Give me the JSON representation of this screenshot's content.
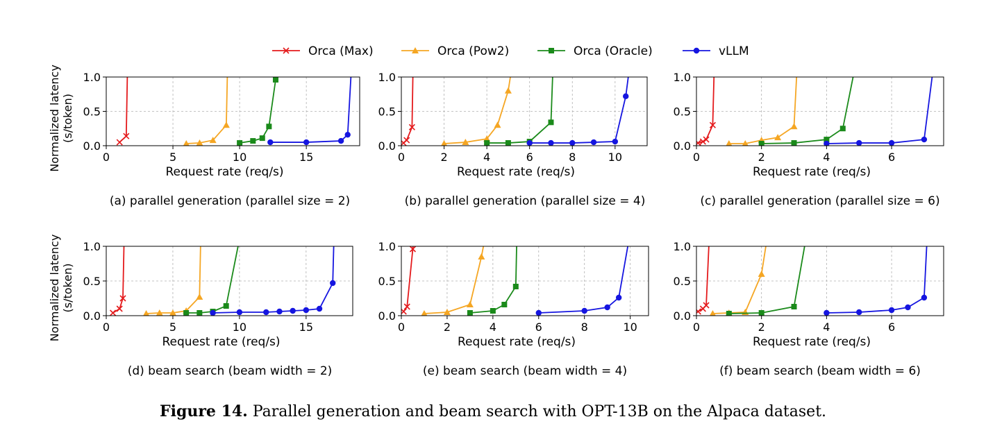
{
  "figure": {
    "label": "Figure 14.",
    "text": "Parallel generation and beam search with OPT-13B on the Alpaca dataset."
  },
  "legend": [
    {
      "name": "Orca (Max)",
      "color": "#e41a1c",
      "marker": "x"
    },
    {
      "name": "Orca (Pow2)",
      "color": "#f5a623",
      "marker": "triangle"
    },
    {
      "name": "Orca (Oracle)",
      "color": "#1a8a1a",
      "marker": "square"
    },
    {
      "name": "vLLM",
      "color": "#1515e0",
      "marker": "circle"
    }
  ],
  "chart_data": [
    {
      "type": "line",
      "caption": "(a) parallel generation (parallel size = 2)",
      "xlabel": "Request rate (req/s)",
      "ylabel": "Normalized latency\n(s/token)",
      "xlim": [
        0,
        19
      ],
      "ylim": [
        0,
        1.0
      ],
      "xticks": [
        0,
        5,
        10,
        15
      ],
      "yticks": [
        0.0,
        0.5,
        1.0
      ],
      "grid": true,
      "series": [
        {
          "name": "Orca (Max)",
          "x": [
            1.0,
            1.5,
            1.6
          ],
          "y": [
            0.05,
            0.14,
            1.2
          ]
        },
        {
          "name": "Orca (Pow2)",
          "x": [
            6,
            7,
            8,
            9,
            9.1
          ],
          "y": [
            0.03,
            0.04,
            0.08,
            0.3,
            1.2
          ]
        },
        {
          "name": "Orca (Oracle)",
          "x": [
            10,
            11,
            11.7,
            12.2,
            12.7,
            12.8
          ],
          "y": [
            0.04,
            0.07,
            0.11,
            0.28,
            0.96,
            1.2
          ]
        },
        {
          "name": "vLLM",
          "x": [
            12.3,
            15,
            17.6,
            18.1,
            18.4
          ],
          "y": [
            0.05,
            0.05,
            0.07,
            0.16,
            1.2
          ]
        }
      ]
    },
    {
      "type": "line",
      "caption": "(b) parallel generation (parallel size = 4)",
      "xlabel": "Request rate (req/s)",
      "ylabel": "Normalized latency\n(s/token)",
      "xlim": [
        0,
        11.5
      ],
      "ylim": [
        0,
        1.0
      ],
      "xticks": [
        0,
        2,
        4,
        6,
        8,
        10
      ],
      "yticks": [
        0.0,
        0.5,
        1.0
      ],
      "grid": true,
      "series": [
        {
          "name": "Orca (Max)",
          "x": [
            0.1,
            0.25,
            0.5,
            0.55
          ],
          "y": [
            0.04,
            0.08,
            0.27,
            1.2
          ]
        },
        {
          "name": "Orca (Pow2)",
          "x": [
            2,
            3,
            4,
            4.5,
            5,
            5.2
          ],
          "y": [
            0.03,
            0.05,
            0.1,
            0.3,
            0.8,
            1.2
          ]
        },
        {
          "name": "Orca (Oracle)",
          "x": [
            4,
            5,
            6,
            7,
            7.1
          ],
          "y": [
            0.04,
            0.04,
            0.06,
            0.34,
            1.2
          ]
        },
        {
          "name": "vLLM",
          "x": [
            6,
            7,
            8,
            9,
            10,
            10.5,
            10.7
          ],
          "y": [
            0.04,
            0.04,
            0.04,
            0.05,
            0.06,
            0.72,
            1.2
          ]
        }
      ]
    },
    {
      "type": "line",
      "caption": "(c) parallel generation (parallel size = 6)",
      "xlabel": "Request rate (req/s)",
      "ylabel": "Normalized latency\n(s/token)",
      "xlim": [
        0,
        7.6
      ],
      "ylim": [
        0,
        1.0
      ],
      "xticks": [
        0,
        2,
        4,
        6
      ],
      "yticks": [
        0.0,
        0.5,
        1.0
      ],
      "grid": true,
      "series": [
        {
          "name": "Orca (Max)",
          "x": [
            0.05,
            0.2,
            0.3,
            0.5,
            0.55
          ],
          "y": [
            0.04,
            0.06,
            0.09,
            0.3,
            1.2
          ]
        },
        {
          "name": "Orca (Pow2)",
          "x": [
            1,
            1.5,
            2,
            2.5,
            3,
            3.1
          ],
          "y": [
            0.03,
            0.03,
            0.08,
            0.12,
            0.28,
            1.2
          ]
        },
        {
          "name": "Orca (Oracle)",
          "x": [
            2,
            3,
            4,
            4.5,
            4.9
          ],
          "y": [
            0.03,
            0.04,
            0.09,
            0.25,
            1.2
          ]
        },
        {
          "name": "vLLM",
          "x": [
            4,
            5,
            6,
            7,
            7.3
          ],
          "y": [
            0.03,
            0.04,
            0.04,
            0.09,
            1.2
          ]
        }
      ]
    },
    {
      "type": "line",
      "caption": "(d) beam search (beam width = 2)",
      "xlabel": "Request rate (req/s)",
      "ylabel": "Normalized latency\n(s/token)",
      "xlim": [
        0,
        18.5
      ],
      "ylim": [
        0,
        1.0
      ],
      "xticks": [
        0,
        5,
        10,
        15
      ],
      "yticks": [
        0.0,
        0.5,
        1.0
      ],
      "grid": true,
      "series": [
        {
          "name": "Orca (Max)",
          "x": [
            0.5,
            1.0,
            1.25,
            1.35
          ],
          "y": [
            0.04,
            0.1,
            0.25,
            1.2
          ]
        },
        {
          "name": "Orca (Pow2)",
          "x": [
            3,
            4,
            5,
            6,
            7,
            7.1
          ],
          "y": [
            0.03,
            0.04,
            0.04,
            0.07,
            0.27,
            1.2
          ]
        },
        {
          "name": "Orca (Oracle)",
          "x": [
            6,
            7,
            8,
            9,
            10.1
          ],
          "y": [
            0.04,
            0.04,
            0.06,
            0.14,
            1.2
          ]
        },
        {
          "name": "vLLM",
          "x": [
            8,
            10,
            12,
            13,
            14,
            15,
            16,
            17,
            17.1
          ],
          "y": [
            0.04,
            0.05,
            0.05,
            0.06,
            0.07,
            0.08,
            0.1,
            0.47,
            1.2
          ]
        }
      ]
    },
    {
      "type": "line",
      "caption": "(e) beam search (beam width = 4)",
      "xlabel": "Request rate (req/s)",
      "ylabel": "Normalized latency\n(s/token)",
      "xlim": [
        0,
        10.8
      ],
      "ylim": [
        0,
        1.0
      ],
      "xticks": [
        0,
        2,
        4,
        6,
        8,
        10
      ],
      "yticks": [
        0.0,
        0.5,
        1.0
      ],
      "grid": true,
      "series": [
        {
          "name": "Orca (Max)",
          "x": [
            0.1,
            0.25,
            0.5,
            0.55
          ],
          "y": [
            0.06,
            0.13,
            0.96,
            1.2
          ]
        },
        {
          "name": "Orca (Pow2)",
          "x": [
            1,
            2,
            3,
            3.5,
            3.7
          ],
          "y": [
            0.03,
            0.05,
            0.16,
            0.85,
            1.2
          ]
        },
        {
          "name": "Orca (Oracle)",
          "x": [
            3,
            4,
            4.5,
            5,
            5.05
          ],
          "y": [
            0.04,
            0.07,
            0.16,
            0.42,
            1.2
          ]
        },
        {
          "name": "vLLM",
          "x": [
            6,
            8,
            9,
            9.5,
            10
          ],
          "y": [
            0.04,
            0.07,
            0.12,
            0.26,
            1.2
          ]
        }
      ]
    },
    {
      "type": "line",
      "caption": "(f) beam search (beam width = 6)",
      "xlabel": "Request rate (req/s)",
      "ylabel": "Normalized latency\n(s/token)",
      "xlim": [
        0,
        7.6
      ],
      "ylim": [
        0,
        1.0
      ],
      "xticks": [
        0,
        2,
        4,
        6
      ],
      "yticks": [
        0.0,
        0.5,
        1.0
      ],
      "grid": true,
      "series": [
        {
          "name": "Orca (Max)",
          "x": [
            0.05,
            0.2,
            0.3,
            0.4
          ],
          "y": [
            0.06,
            0.1,
            0.15,
            1.2
          ]
        },
        {
          "name": "Orca (Pow2)",
          "x": [
            0.5,
            1,
            1.5,
            2,
            2.2
          ],
          "y": [
            0.03,
            0.04,
            0.05,
            0.6,
            1.2
          ]
        },
        {
          "name": "Orca (Oracle)",
          "x": [
            1,
            2,
            3,
            3.4
          ],
          "y": [
            0.03,
            0.04,
            0.13,
            1.2
          ]
        },
        {
          "name": "vLLM",
          "x": [
            4,
            5,
            6,
            6.5,
            7,
            7.1
          ],
          "y": [
            0.04,
            0.05,
            0.08,
            0.12,
            0.26,
            1.2
          ]
        }
      ]
    }
  ]
}
